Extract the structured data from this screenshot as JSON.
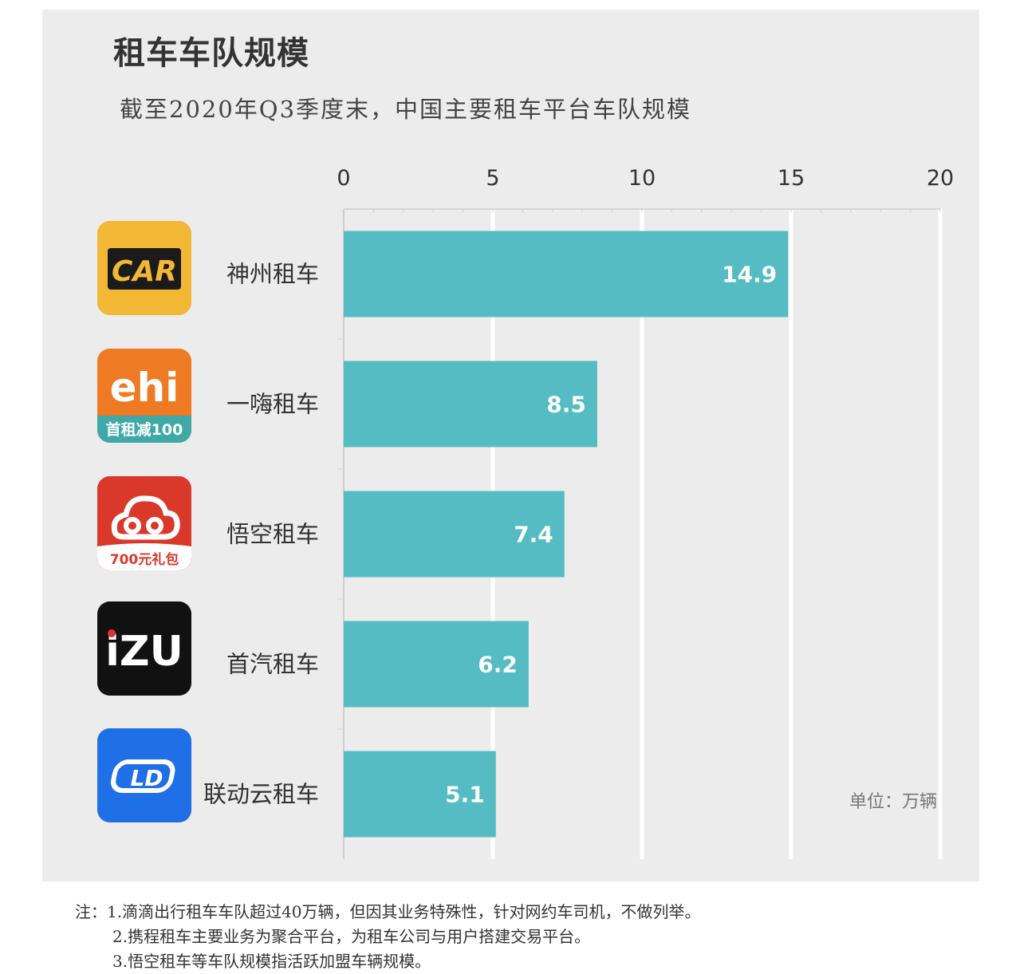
{
  "title": "租车车队规模",
  "subtitle": "截至2020年Q3季度末，中国主要租车平台车队规模",
  "unit": "单位：万辆",
  "logos": [
    {
      "icon": "car-inc-logo-icon",
      "text": "CAR",
      "bg": "#f2b735"
    },
    {
      "icon": "ehi-logo-icon",
      "text": "ehi",
      "badge": "首租减100",
      "bg": "#ee7a23"
    },
    {
      "icon": "wukong-logo-icon",
      "badge": "700元礼包",
      "bg": "#d9382b"
    },
    {
      "icon": "izu-logo-icon",
      "text": "iZU",
      "bg": "#111111"
    },
    {
      "icon": "ld-logo-icon",
      "text": "LD",
      "bg": "#1f6fe6"
    }
  ],
  "chart_data": {
    "type": "bar",
    "orientation": "horizontal",
    "title": "租车车队规模",
    "subtitle": "截至2020年Q3季度末，中国主要租车平台车队规模",
    "categories": [
      "神州租车",
      "一嗨租车",
      "悟空租车",
      "首汽租车",
      "联动云租车"
    ],
    "values": [
      14.9,
      8.5,
      7.4,
      6.2,
      5.1
    ],
    "xlim": [
      0,
      20
    ],
    "xticks": [
      0,
      5,
      10,
      15,
      20
    ],
    "axis_position": "top",
    "unit": "单位：万辆",
    "grid": true,
    "bar_color": "#54bcc2"
  },
  "notes": [
    "注：1.滴滴出行租车车队超过40万辆，但因其业务特殊性，针对网约车司机，不做列举。",
    "2.携程租车主要业务为聚合平台，为租车公司与用户搭建交易平台。",
    "3.悟空租车等车队规模指活跃加盟车辆规模。"
  ]
}
